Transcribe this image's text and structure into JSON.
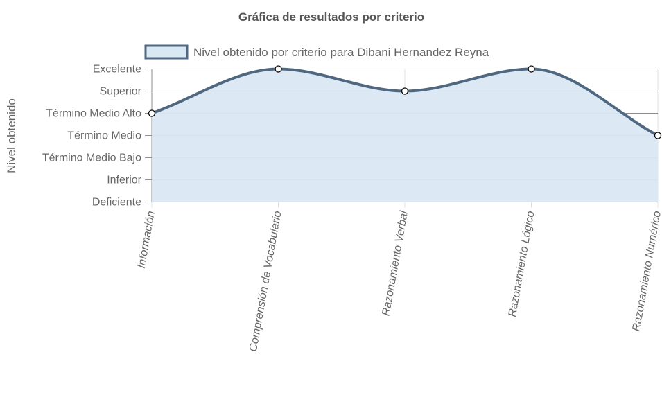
{
  "chart_data": {
    "type": "area",
    "title": "Gráfica de resultados por criterio",
    "ylabel": "Nivel obtenido",
    "xlabel": "",
    "categories": [
      "Información",
      "Comprensión de Vocabulario",
      "Razonamiento Verbal",
      "Razonamiento Lógico",
      "Razonamiento Numérico"
    ],
    "y_levels": [
      "Deficiente",
      "Inferior",
      "Término Medio Bajo",
      "Término Medio",
      "Término Medio Alto",
      "Superior",
      "Excelente"
    ],
    "ylim": [
      0,
      6
    ],
    "series": [
      {
        "name": "Nivel obtenido por criterio para Dibani Hernandez Reyna",
        "values": [
          4,
          6,
          5,
          6,
          3
        ],
        "value_labels": [
          "Término Medio Alto",
          "Excelente",
          "Superior",
          "Excelente",
          "Término Medio"
        ],
        "line_color": "#4f6880",
        "fill_color": "#dae8f4"
      }
    ],
    "legend_position": "top",
    "grid": true
  }
}
